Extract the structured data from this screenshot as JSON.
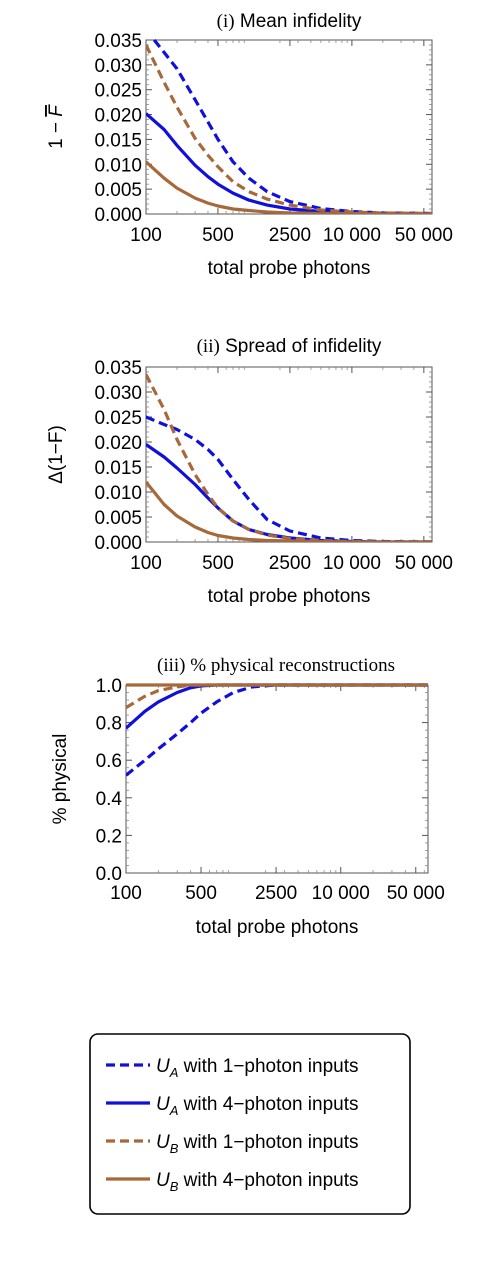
{
  "colors": {
    "UA": "#1010dd",
    "UB": "#a8693a"
  },
  "chart_data": [
    {
      "type": "line",
      "title_parts": [
        "(i)",
        " Mean infidelity"
      ],
      "ylabel_parts": [
        "1 − ",
        "F"
      ],
      "xlabel": "total probe photons",
      "x_scale": "log",
      "xlim": [
        100,
        60000
      ],
      "ylim": [
        0,
        0.035
      ],
      "xticks": [
        100,
        500,
        2500,
        10000,
        50000
      ],
      "xtick_labels": [
        "100",
        "500",
        "2500",
        "10 000",
        "50 000"
      ],
      "yticks": [
        0,
        0.005,
        0.01,
        0.015,
        0.02,
        0.025,
        0.03,
        0.035
      ],
      "ytick_labels": [
        "0.000",
        "0.005",
        "0.010",
        "0.015",
        "0.020",
        "0.025",
        "0.030",
        "0.035"
      ],
      "series": [
        {
          "key": "UA_1",
          "x": [
            120,
            150,
            200,
            300,
            400,
            500,
            700,
            1000,
            1500,
            2500,
            5000,
            10000,
            20000,
            60000
          ],
          "y": [
            0.035,
            0.0325,
            0.0292,
            0.023,
            0.0185,
            0.015,
            0.0105,
            0.0072,
            0.0045,
            0.0025,
            0.0011,
            0.0005,
            0.0002,
            0.0001
          ]
        },
        {
          "key": "UA_4",
          "x": [
            100,
            150,
            200,
            300,
            400,
            500,
            700,
            1000,
            1500,
            2500,
            5000,
            10000,
            20000,
            60000
          ],
          "y": [
            0.0202,
            0.017,
            0.0138,
            0.0098,
            0.0075,
            0.006,
            0.0042,
            0.0028,
            0.0018,
            0.001,
            0.0005,
            0.0002,
            0.0001,
            0.0
          ]
        },
        {
          "key": "UB_1",
          "x": [
            100,
            150,
            200,
            300,
            400,
            500,
            700,
            1000,
            1500,
            2500,
            5000,
            10000,
            20000,
            60000
          ],
          "y": [
            0.034,
            0.0265,
            0.0215,
            0.0152,
            0.0118,
            0.0095,
            0.0065,
            0.0045,
            0.003,
            0.0018,
            0.0008,
            0.0004,
            0.0002,
            0.0001
          ]
        },
        {
          "key": "UB_4",
          "x": [
            100,
            150,
            200,
            300,
            400,
            500,
            700,
            1000,
            1500,
            2500,
            5000,
            10000,
            20000,
            60000
          ],
          "y": [
            0.0105,
            0.0072,
            0.0052,
            0.0032,
            0.0022,
            0.0016,
            0.001,
            0.0007,
            0.0004,
            0.0002,
            0.0001,
            0.0001,
            0.0,
            0.0
          ]
        }
      ]
    },
    {
      "type": "line",
      "title_parts": [
        "(ii)",
        " Spread of infidelity"
      ],
      "ylabel_parts": [
        "Δ(1−F)"
      ],
      "xlabel": "total probe photons",
      "x_scale": "log",
      "xlim": [
        100,
        60000
      ],
      "ylim": [
        0,
        0.035
      ],
      "xticks": [
        100,
        500,
        2500,
        10000,
        50000
      ],
      "xtick_labels": [
        "100",
        "500",
        "2500",
        "10 000",
        "50 000"
      ],
      "yticks": [
        0,
        0.005,
        0.01,
        0.015,
        0.02,
        0.025,
        0.03,
        0.035
      ],
      "ytick_labels": [
        "0.000",
        "0.005",
        "0.010",
        "0.015",
        "0.020",
        "0.025",
        "0.030",
        "0.035"
      ],
      "series": [
        {
          "key": "UA_1",
          "x": [
            100,
            150,
            200,
            300,
            400,
            500,
            700,
            1000,
            1500,
            2500,
            5000,
            10000,
            20000,
            60000
          ],
          "y": [
            0.025,
            0.0235,
            0.0225,
            0.0205,
            0.0185,
            0.0165,
            0.0125,
            0.0085,
            0.0045,
            0.0022,
            0.0008,
            0.0003,
            0.0001,
            0.0
          ]
        },
        {
          "key": "UA_4",
          "x": [
            100,
            150,
            200,
            300,
            400,
            500,
            700,
            1000,
            1500,
            2500,
            5000,
            10000,
            20000,
            60000
          ],
          "y": [
            0.0195,
            0.017,
            0.0148,
            0.0115,
            0.0088,
            0.0068,
            0.0042,
            0.0025,
            0.0015,
            0.0008,
            0.0003,
            0.0001,
            0.0,
            0.0
          ]
        },
        {
          "key": "UB_1",
          "x": [
            100,
            150,
            200,
            300,
            400,
            500,
            700,
            1000,
            1500,
            2500,
            5000,
            10000,
            20000,
            60000
          ],
          "y": [
            0.0335,
            0.0265,
            0.0205,
            0.0135,
            0.0095,
            0.0068,
            0.0042,
            0.0025,
            0.0014,
            0.0007,
            0.0003,
            0.0001,
            0.0,
            0.0
          ]
        },
        {
          "key": "UB_4",
          "x": [
            100,
            150,
            200,
            300,
            400,
            500,
            700,
            1000,
            1500,
            2500,
            5000,
            10000,
            20000,
            60000
          ],
          "y": [
            0.012,
            0.0075,
            0.0052,
            0.003,
            0.0019,
            0.0013,
            0.0008,
            0.0005,
            0.0003,
            0.0002,
            0.0001,
            0.0,
            0.0,
            0.0
          ]
        }
      ]
    },
    {
      "type": "line",
      "title_parts": [
        "(iii)",
        " % physical reconstructions"
      ],
      "ylabel_parts": [
        "% physical"
      ],
      "xlabel": "total probe photons",
      "x_scale": "log",
      "xlim": [
        100,
        65000
      ],
      "ylim": [
        0,
        1.0
      ],
      "xticks": [
        100,
        500,
        2500,
        10000,
        50000
      ],
      "xtick_labels": [
        "100",
        "500",
        "2500",
        "10 000",
        "50 000"
      ],
      "yticks": [
        0,
        0.2,
        0.4,
        0.6,
        0.8,
        1.0
      ],
      "ytick_labels": [
        "0.0",
        "0.2",
        "0.4",
        "0.6",
        "0.8",
        "1.0"
      ],
      "series": [
        {
          "key": "UA_1",
          "x": [
            100,
            150,
            200,
            300,
            400,
            500,
            700,
            1000,
            1500,
            2500,
            5000,
            10000,
            65000
          ],
          "y": [
            0.52,
            0.6,
            0.66,
            0.74,
            0.8,
            0.85,
            0.91,
            0.96,
            0.99,
            1.0,
            1.0,
            1.0,
            1.0
          ]
        },
        {
          "key": "UA_4",
          "x": [
            100,
            150,
            200,
            300,
            400,
            500,
            700,
            1000,
            2500,
            65000
          ],
          "y": [
            0.77,
            0.86,
            0.91,
            0.96,
            0.985,
            0.995,
            1.0,
            1.0,
            1.0,
            1.0
          ]
        },
        {
          "key": "UB_1",
          "x": [
            100,
            150,
            200,
            300,
            400,
            500,
            700,
            2500,
            65000
          ],
          "y": [
            0.88,
            0.94,
            0.97,
            0.99,
            1.0,
            1.0,
            1.0,
            1.0,
            1.0
          ]
        },
        {
          "key": "UB_4",
          "x": [
            100,
            200,
            500,
            65000
          ],
          "y": [
            1.0,
            1.0,
            1.0,
            1.0
          ]
        }
      ]
    }
  ],
  "legend": {
    "items": [
      {
        "key": "UA_1",
        "color_key": "UA",
        "dashed": true,
        "symbol": "U",
        "sub": "A",
        "label": " with 1−photon inputs"
      },
      {
        "key": "UA_4",
        "color_key": "UA",
        "dashed": false,
        "symbol": "U",
        "sub": "A",
        "label": " with 4−photon inputs"
      },
      {
        "key": "UB_1",
        "color_key": "UB",
        "dashed": true,
        "symbol": "U",
        "sub": "B",
        "label": " with 1−photon inputs"
      },
      {
        "key": "UB_4",
        "color_key": "UB",
        "dashed": false,
        "symbol": "U",
        "sub": "B",
        "label": " with 4−photon inputs"
      }
    ]
  }
}
